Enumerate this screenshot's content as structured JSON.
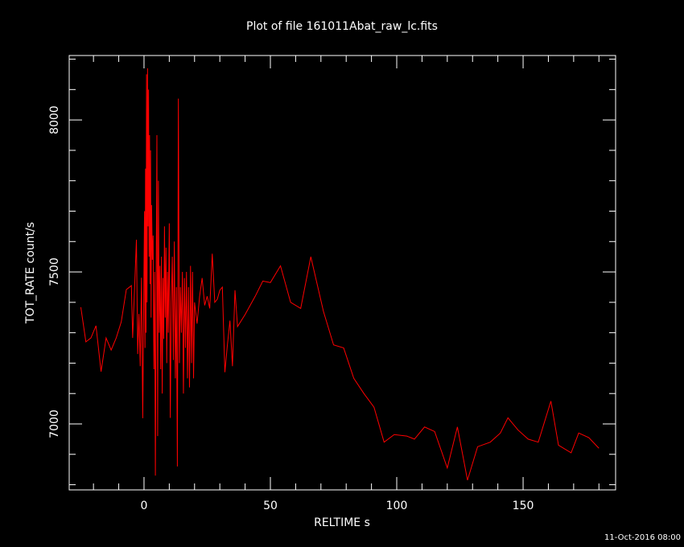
{
  "chart_data": {
    "type": "line",
    "title": "Plot of file 161011Abat_raw_lc.fits",
    "x_label": "RELTIME  s",
    "y_label": "TOT_RATE  count/s",
    "footer": "11-Oct-2016 08:00",
    "xlim": [
      -29.6,
      186.6
    ],
    "ylim": [
      6783,
      8212
    ],
    "xticks": [
      0,
      50,
      100,
      150
    ],
    "yticks": [
      7000,
      7500,
      8000
    ],
    "xminorticks": [
      -20,
      -10,
      10,
      20,
      30,
      40,
      60,
      70,
      80,
      90,
      110,
      120,
      130,
      140,
      160,
      170,
      180
    ],
    "yminorticks": [
      6800,
      6900,
      7100,
      7200,
      7300,
      7400,
      7600,
      7700,
      7800,
      7900,
      8100,
      8200
    ],
    "series": [
      {
        "name": "TOT_RATE",
        "color": "#ff0000",
        "x": [
          -25,
          -23,
          -21,
          -19,
          -17,
          -15,
          -13,
          -11,
          -9,
          -7,
          -5,
          -4.5,
          -4,
          -3,
          -2.5,
          -2,
          -1.5,
          -1,
          -0.5,
          0,
          0.2,
          0.4,
          0.6,
          0.8,
          1.0,
          1.2,
          1.4,
          1.6,
          1.8,
          2.0,
          2.2,
          2.4,
          2.6,
          2.8,
          3.0,
          3.3,
          3.6,
          3.9,
          4.2,
          4.5,
          4.8,
          5.1,
          5.4,
          5.7,
          6.0,
          6.3,
          6.6,
          6.9,
          7.2,
          7.5,
          7.8,
          8.1,
          8.4,
          8.7,
          9.0,
          9.3,
          9.6,
          10.0,
          10.4,
          10.8,
          11.2,
          11.6,
          12.0,
          12.4,
          12.8,
          13.2,
          13.6,
          14.0,
          14.4,
          14.8,
          15.2,
          15.6,
          16.0,
          16.4,
          16.8,
          17.2,
          17.6,
          18.0,
          18.4,
          18.8,
          19.2,
          19.6,
          20.0,
          21,
          22,
          23,
          24,
          25,
          26,
          27,
          28,
          29,
          30,
          31,
          32,
          33,
          34,
          35,
          36,
          37,
          40,
          44,
          47,
          50,
          54,
          58,
          62,
          66,
          71,
          75,
          79,
          83,
          87,
          91,
          95,
          99,
          104,
          107,
          111,
          115,
          120,
          124,
          128,
          132,
          137,
          141,
          144,
          148,
          152,
          156,
          161,
          164,
          169,
          172,
          176,
          180
        ],
        "values": [
          7384,
          7270,
          7283,
          7323,
          7172,
          7283,
          7243,
          7283,
          7336,
          7442,
          7455,
          7283,
          7389,
          7606,
          7230,
          7362,
          7190,
          7481,
          7019,
          7521,
          7700,
          7250,
          7840,
          7300,
          8150,
          7400,
          8170,
          7650,
          8100,
          7550,
          7950,
          7460,
          7900,
          7350,
          7720,
          7540,
          7620,
          7180,
          7500,
          6830,
          7450,
          7950,
          6960,
          7800,
          7300,
          7520,
          7180,
          7550,
          7100,
          7480,
          7280,
          7650,
          7350,
          7580,
          7200,
          7500,
          7300,
          7660,
          7020,
          7400,
          7550,
          7210,
          7600,
          7150,
          7450,
          6860,
          8070,
          7200,
          7450,
          7300,
          7500,
          7100,
          7480,
          7250,
          7500,
          7150,
          7450,
          7120,
          7520,
          7200,
          7500,
          7150,
          7400,
          7330,
          7420,
          7480,
          7390,
          7420,
          7380,
          7560,
          7400,
          7410,
          7440,
          7450,
          7170,
          7260,
          7340,
          7190,
          7440,
          7320,
          7360,
          7420,
          7470,
          7465,
          7520,
          7400,
          7380,
          7550,
          7370,
          7260,
          7250,
          7150,
          7100,
          7055,
          6940,
          6965,
          6960,
          6950,
          6990,
          6975,
          6855,
          6990,
          6815,
          6925,
          6940,
          6970,
          7020,
          6980,
          6950,
          6940,
          7075,
          6930,
          6905,
          6970,
          6955,
          6920
        ]
      }
    ]
  }
}
